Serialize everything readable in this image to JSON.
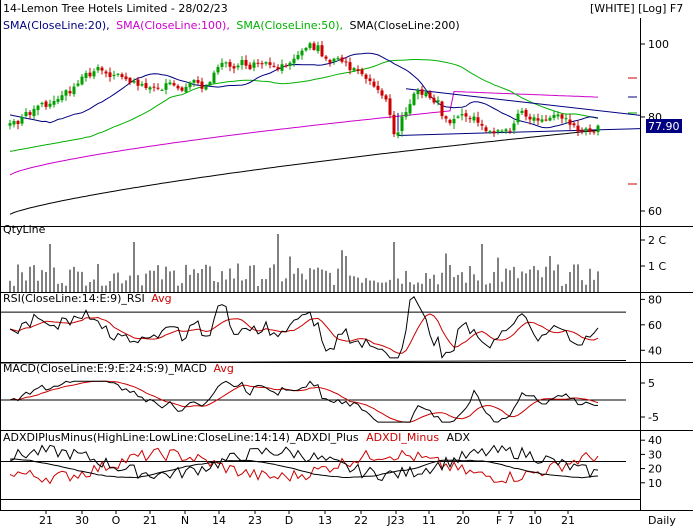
{
  "header": {
    "title": "14-Lemon Tree Hotels Limited - 28/02/23",
    "mode": "[WHITE] [Log] F7",
    "legend": [
      {
        "text": "SMA(CloseLine:20),",
        "color": "#000080"
      },
      {
        "text": "SMA(CloseLine:100),",
        "color": "#cc00cc"
      },
      {
        "text": "SMA(CloseLine:50),",
        "color": "#00b000"
      },
      {
        "text": "SMA(CloseLine:200)",
        "color": "#000000"
      }
    ]
  },
  "price_label": "77.90",
  "period_label": "Daily",
  "colors": {
    "bull": "#00a000",
    "bear": "#cc0000",
    "sma20": "#000080",
    "sma50": "#00b000",
    "sma100": "#cc00cc",
    "sma200": "#000000",
    "trendline": "#000080",
    "pricebox": "#000080",
    "rsi": "#000000",
    "rsi_avg": "#cc0000",
    "macd": "#000000",
    "macd_avg": "#cc0000",
    "adx_plus": "#000000",
    "adx_minus": "#cc0000",
    "adx": "#000000"
  },
  "x_axis_labels": [
    "21",
    "30",
    "O",
    "21",
    "N",
    "14",
    "23",
    "D",
    "13",
    "22",
    "J23",
    "11",
    "20",
    "F",
    "7",
    "10",
    "21"
  ],
  "panels": {
    "qty": {
      "title": "QtyLine",
      "ticks": [
        "2 C",
        "1 C"
      ]
    },
    "rsi": {
      "title": "RSI(CloseLine:14:E:9)_RSI",
      "avg_label": "Avg",
      "ticks": [
        "80",
        "60",
        "40"
      ]
    },
    "macd": {
      "title": "MACD(CloseLine:E:9:E:24:S:9)_MACD",
      "avg_label": "Avg",
      "ticks": [
        "5",
        "-5"
      ]
    },
    "adx": {
      "title": "ADXDIPlusMinus(HighLine:LowLine:CloseLine:14:14)_ADXDI_Plus",
      "minus_label": "ADXDI_Minus",
      "adx_label": "ADX",
      "ticks": [
        "40",
        "30",
        "20",
        "10"
      ]
    }
  },
  "chart_data": [
    {
      "type": "candlestick",
      "title": "14-Lemon Tree Hotels Limited - 28/02/23",
      "scale": "log",
      "y_ticks": [
        100,
        80,
        60
      ],
      "last_close": 77.9,
      "ohlc_close": [
        78.5,
        79,
        78.3,
        80,
        81.2,
        80.5,
        82,
        82.8,
        83.5,
        82.5,
        83.3,
        84,
        84.5,
        85.5,
        86.8,
        86,
        87.8,
        88.6,
        90.5,
        91.5,
        90.6,
        92,
        93.2,
        92.2,
        91.4,
        90.4,
        91,
        91.3,
        90.4,
        89.8,
        88.8,
        89.3,
        88,
        88.5,
        87.4,
        87.6,
        87.7,
        87.2,
        86.9,
        88.7,
        88.9,
        88.1,
        87.3,
        86.7,
        87.7,
        88.9,
        89.6,
        88.8,
        87.2,
        87.8,
        89,
        91.6,
        93.2,
        94.4,
        94.5,
        93.3,
        92.8,
        93.6,
        95.2,
        93.6,
        92.6,
        94.5,
        94.3,
        94,
        94.6,
        93.8,
        93.4,
        92.5,
        94,
        93.4,
        94.4,
        95.6,
        96.7,
        98,
        98.8,
        100.2,
        98.2,
        99.6,
        96.3,
        95.6,
        94.4,
        95.6,
        95.8,
        94.7,
        94.7,
        92.3,
        92.9,
        92.1,
        91.2,
        89.9,
        89.3,
        87.8,
        86.9,
        85.4,
        84.4,
        80.5,
        75.9,
        76.3,
        80.1,
        81.2,
        83.2,
        85.9,
        86.8,
        85.6,
        86.3,
        84.8,
        83.6,
        84.2,
        80.2,
        79.6,
        78.5,
        79.5,
        80.1,
        80.7,
        80.1,
        79.5,
        80.1,
        78.6,
        77.9,
        76.6,
        76.6,
        76.1,
        76.8,
        76.7,
        77,
        76.5,
        78.4,
        80.8,
        81.5,
        80.1,
        79.4,
        79.9,
        79.1,
        79.4,
        79.2,
        79.8,
        80.5,
        80.6,
        79.6,
        79.7,
        78.1,
        78,
        76.5,
        76.5,
        77.2,
        76.4,
        76.5,
        77.9
      ],
      "smas": [
        {
          "name": "SMA(CloseLine:20)",
          "start": [
            0,
            80.5
          ],
          "end": [
            147,
            77.7
          ]
        },
        {
          "name": "SMA(CloseLine:50)",
          "start": [
            0,
            72
          ],
          "end": [
            147,
            78.3
          ]
        },
        {
          "name": "SMA(CloseLine:100)",
          "start": [
            0,
            67
          ],
          "end": [
            147,
            85
          ]
        },
        {
          "name": "SMA(CloseLine:200)",
          "start": [
            0,
            59.4
          ],
          "end": [
            147,
            76.8
          ]
        }
      ]
    },
    {
      "type": "bar",
      "title": "QtyLine",
      "y_ticks": [
        "2 C",
        "1 C"
      ]
    },
    {
      "type": "line",
      "title": "RSI(CloseLine:14:E:9)_RSI",
      "series": [
        {
          "name": "RSI"
        },
        {
          "name": "Avg"
        }
      ],
      "y_ticks": [
        80,
        60,
        40
      ],
      "ylim": [
        30,
        85
      ]
    },
    {
      "type": "line",
      "title": "MACD(CloseLine:E:9:E:24:S:9)_MACD",
      "series": [
        {
          "name": "MACD"
        },
        {
          "name": "Avg"
        }
      ],
      "y_ticks": [
        5,
        -5
      ],
      "ylim": [
        -7,
        6
      ]
    },
    {
      "type": "line",
      "title": "ADXDIPlusMinus(HighLine:LowLine:CloseLine:14:14)_ADXDI_Plus",
      "series": [
        {
          "name": "ADXDI_Plus"
        },
        {
          "name": "ADXDI_Minus"
        },
        {
          "name": "ADX"
        }
      ],
      "y_ticks": [
        40,
        30,
        20,
        10
      ],
      "ylim": [
        0,
        45
      ]
    }
  ]
}
